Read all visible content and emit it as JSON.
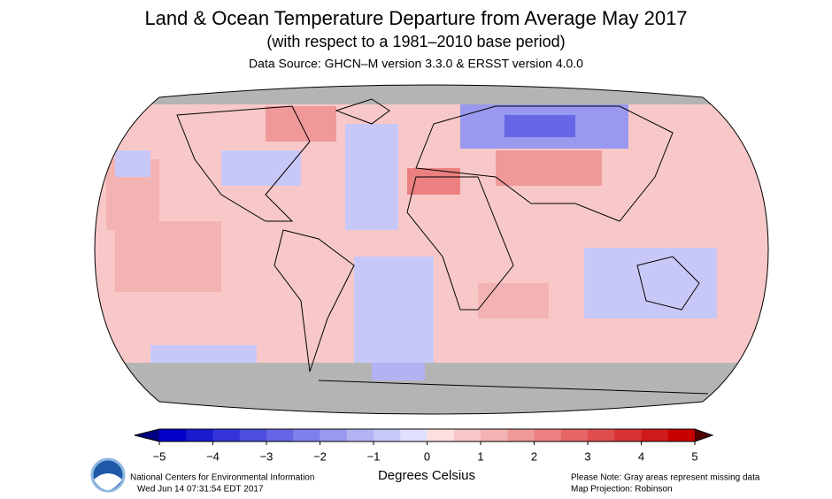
{
  "header": {
    "title": "Land & Ocean Temperature Departure from Average May 2017",
    "subtitle": "(with respect to a 1981–2010 base period)",
    "source": "Data Source: GHCN–M version 3.3.0 & ERSST version 4.0.0"
  },
  "colorbar": {
    "label": "Degrees Celsius",
    "lim": [
      -5,
      5
    ],
    "ticks": [
      {
        "value": -5,
        "label": "−5"
      },
      {
        "value": -4,
        "label": "−4"
      },
      {
        "value": -3,
        "label": "−3"
      },
      {
        "value": -2,
        "label": "−2"
      },
      {
        "value": -1,
        "label": "−1"
      },
      0,
      1,
      2,
      3,
      4,
      5
    ],
    "colors": [
      "#0000c8",
      "#1a1ad0",
      "#3333d8",
      "#4d4de0",
      "#6666e6",
      "#8080ec",
      "#9999f0",
      "#b3b3f4",
      "#c8c8f8",
      "#e0e0fc",
      "#fce0e0",
      "#f8c8c8",
      "#f4b3b3",
      "#f09999",
      "#ec8080",
      "#e66666",
      "#e04d4d",
      "#d83333",
      "#d01a1a",
      "#c80000"
    ],
    "under": "#000080",
    "over": "#500000"
  },
  "footer": {
    "left1": "National Centers for Environmental Information",
    "left2": "Wed Jun 14 07:31:54 EDT 2017",
    "right1": "Please Note: Gray areas represent missing data",
    "right2": "Map Projection: Robinson"
  }
}
